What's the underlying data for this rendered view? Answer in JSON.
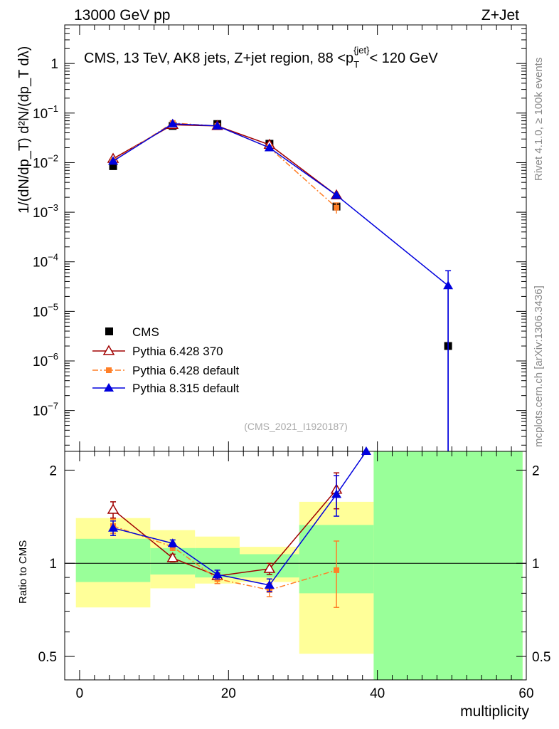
{
  "header": {
    "left": "13000 GeV pp",
    "right": "Z+Jet",
    "side_top": "Rivet 4.1.0, ≥ 100k events",
    "side_bottom": "mcplots.cern.ch [arXiv:1306.3436]",
    "watermark": "(CMS_2021_I1920187)"
  },
  "chart_data": [
    {
      "type": "scatter",
      "title": "CMS, 13 TeV, AK8 jets, Z+jet region, 88 <p_T^{jet}< 120 GeV",
      "title_parts": {
        "main": "CMS, 13 TeV, AK8 jets, Z+jet region, 88 <p",
        "sub": "T",
        "sup": "{jet}",
        "tail": "< 120 GeV"
      },
      "ylabel": "1/(dN/dp_T) d²N/(dp_T dλ)",
      "yscale": "log",
      "ylim": [
        1.5e-08,
        6
      ],
      "xlim": [
        -2,
        60
      ],
      "y_ticks": [
        {
          "v": 1e-07,
          "base": "10",
          "exp": "−7"
        },
        {
          "v": 1e-06,
          "base": "10",
          "exp": "−6"
        },
        {
          "v": 1e-05,
          "base": "10",
          "exp": "−5"
        },
        {
          "v": 0.0001,
          "base": "10",
          "exp": "−4"
        },
        {
          "v": 0.001,
          "base": "10",
          "exp": "−3"
        },
        {
          "v": 0.01,
          "base": "10",
          "exp": "−2"
        },
        {
          "v": 0.1,
          "base": "10",
          "exp": "−1"
        },
        {
          "v": 1,
          "base": "1",
          "exp": ""
        }
      ],
      "bins": [
        [
          -0.5,
          9.5
        ],
        [
          9.5,
          15.5
        ],
        [
          15.5,
          21.5
        ],
        [
          21.5,
          29.5
        ],
        [
          29.5,
          39.5
        ],
        [
          39.5,
          59.5
        ]
      ],
      "series": [
        {
          "name": "CMS",
          "color": "#000000",
          "marker": "square",
          "x": [
            4.5,
            12.5,
            18.5,
            25.5,
            34.5,
            49.5
          ],
          "y": [
            0.0085,
            0.055,
            0.06,
            0.024,
            0.0013,
            2e-06
          ]
        },
        {
          "name": "Pythia 6.428 370",
          "color": "#a00000",
          "marker": "open-triangle",
          "line": "solid",
          "x": [
            4.5,
            12.5,
            18.5,
            25.5,
            34.5
          ],
          "y": [
            0.012,
            0.058,
            0.055,
            0.023,
            0.0022
          ]
        },
        {
          "name": "Pythia 6.428 default",
          "color": "#ff7f27",
          "marker": "square-small",
          "line": "dashdot",
          "x": [
            4.5,
            12.5,
            18.5,
            25.5,
            34.5
          ],
          "y": [
            0.011,
            0.063,
            0.055,
            0.02,
            0.00124
          ],
          "yerr": [
            0,
            0,
            0,
            0,
            0.0003
          ]
        },
        {
          "name": "Pythia 8.315 default",
          "color": "#0000dd",
          "marker": "triangle",
          "line": "solid",
          "x": [
            4.5,
            12.5,
            18.5,
            25.5,
            34.5,
            49.5
          ],
          "y": [
            0.0107,
            0.061,
            0.055,
            0.02,
            0.0022,
            3.3e-05
          ],
          "yerr": [
            0,
            0,
            0,
            0,
            0,
            3.3e-05
          ]
        }
      ]
    },
    {
      "type": "line",
      "ylabel": "Ratio to CMS",
      "xlabel": "multiplicity",
      "yscale": "log",
      "ylim": [
        0.42,
        2.3
      ],
      "xlim": [
        -2,
        60
      ],
      "y_ticks": [
        {
          "v": 0.5,
          "label": "0.5"
        },
        {
          "v": 1,
          "label": "1"
        },
        {
          "v": 2,
          "label": "2"
        }
      ],
      "x_ticks": [
        {
          "v": 0,
          "label": "0"
        },
        {
          "v": 20,
          "label": "20"
        },
        {
          "v": 40,
          "label": "40"
        },
        {
          "v": 60,
          "label": "60"
        }
      ],
      "bands": [
        {
          "x0": -0.5,
          "x1": 9.5,
          "stat": [
            0.87,
            1.2
          ],
          "total": [
            0.72,
            1.4
          ]
        },
        {
          "x0": 9.5,
          "x1": 15.5,
          "stat": [
            0.92,
            1.12
          ],
          "total": [
            0.83,
            1.28
          ]
        },
        {
          "x0": 15.5,
          "x1": 21.5,
          "stat": [
            0.9,
            1.12
          ],
          "total": [
            0.86,
            1.22
          ]
        },
        {
          "x0": 21.5,
          "x1": 29.5,
          "stat": [
            0.9,
            1.07
          ],
          "total": [
            0.87,
            1.13
          ]
        },
        {
          "x0": 29.5,
          "x1": 39.5,
          "stat": [
            0.8,
            1.33
          ],
          "total": [
            0.51,
            1.58
          ]
        },
        {
          "x0": 39.5,
          "x1": 59.5,
          "stat": [
            0.42,
            2.3
          ],
          "total": [
            0.42,
            2.3
          ]
        }
      ],
      "series": [
        {
          "name": "Pythia 6.428 370",
          "color": "#a00000",
          "x": [
            4.5,
            12.5,
            18.5,
            25.5,
            34.5
          ],
          "y": [
            1.49,
            1.04,
            0.91,
            0.96,
            1.73
          ],
          "yerr": [
            0.09,
            0.03,
            0.02,
            0.04,
            0.23
          ]
        },
        {
          "name": "Pythia 6.428 default",
          "color": "#ff7f27",
          "x": [
            4.5,
            12.5,
            18.5,
            25.5,
            34.5
          ],
          "y": [
            1.32,
            1.13,
            0.89,
            0.82,
            0.95
          ],
          "yerr": [
            0.07,
            0.03,
            0.03,
            0.04,
            0.23
          ]
        },
        {
          "name": "Pythia 8.315 default",
          "color": "#0000dd",
          "x": [
            4.5,
            12.5,
            18.5,
            25.5,
            34.5,
            38.5
          ],
          "y": [
            1.3,
            1.16,
            0.92,
            0.85,
            1.67,
            2.3
          ],
          "yerr": [
            0.07,
            0.03,
            0.03,
            0.04,
            0.25,
            0
          ]
        }
      ]
    }
  ]
}
